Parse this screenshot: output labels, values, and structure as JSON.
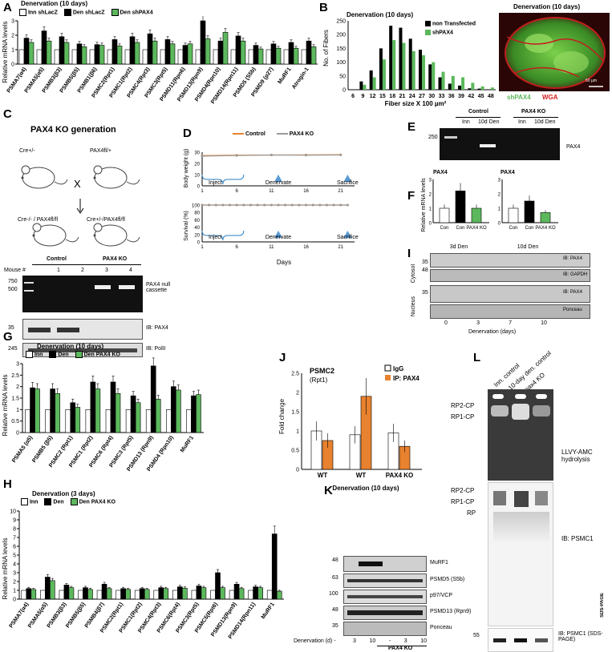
{
  "colors": {
    "inn": "#ffffff",
    "den": "#000000",
    "green": "#5cb85c",
    "orange": "#e8822e",
    "grey": "#9a9a9a",
    "wga": "#d42020"
  },
  "panelA": {
    "letter": "A",
    "header": "Denervation (10 days)",
    "ylabel": "Relative mRNA levels",
    "legend": [
      "Inn shLacZ",
      "Den shLacZ",
      "Den shPAX4"
    ]
  },
  "panelB": {
    "letter": "B",
    "header": "Denervation (10 days)",
    "ylabel": "No. of Fibers",
    "xlabel": "Fiber size X 100 µm²",
    "legend": [
      "non Transfected",
      "shPAX4"
    ],
    "image_title": "Denervation (10 days)",
    "image_label_green": "shPAX4",
    "image_label_red": "WGA",
    "scalebar": "50 µm"
  },
  "panelC": {
    "letter": "C",
    "header": "PAX4 KO generation",
    "left_genotype_top": "Cre+/-",
    "right_genotype_top": "PAX4fl/+",
    "cross": "X",
    "left_offspring": "Cre-/- / PAX4fl/fl",
    "right_offspring": "Cre+/-/PAX4fl/fl",
    "group_control": "Control",
    "group_ko": "PAX4 KO",
    "mouse_label": "Mouse #",
    "lanes": [
      "1",
      "2",
      "3",
      "4"
    ],
    "marker_750": "750",
    "marker_500": "500",
    "marker_35": "35",
    "marker_245": "245",
    "band1": "PAX4 null cassette",
    "band2": "IB: PAX4",
    "band3": "IB: PolII"
  },
  "panelD": {
    "letter": "D",
    "legend": [
      "Control",
      "PAX4 KO"
    ],
    "ylabel_top": "Body weight (g)",
    "ylabel_bottom": "Survival (%)",
    "xlabel": "Days",
    "annot_inject": "Inject",
    "annot_denervate": "Denervate",
    "annot_sacrifice": "Sacrifice",
    "y_ticks_top": [
      "0",
      "10",
      "20",
      "30"
    ],
    "y_ticks_bottom": [
      "0",
      "20",
      "40",
      "60",
      "80",
      "100"
    ],
    "x_ticks": [
      "1",
      "6",
      "11",
      "16",
      "21"
    ]
  },
  "panelE": {
    "letter": "E",
    "group_control": "Control",
    "group_ko": "PAX4 KO",
    "lanes": [
      "Inn",
      "10d Den",
      "Inn",
      "10d Den"
    ],
    "marker": "250",
    "band": "PAX4"
  },
  "panelF": {
    "letter": "F",
    "title1": "PAX4",
    "title2": "PAX4",
    "ylabel": "Relative mRNA levels",
    "xlabels": [
      "Con",
      "Con",
      "PAX4 KO",
      "Con",
      "Con",
      "PAX4 KO"
    ],
    "group1": "3d Den",
    "group2": "10d Den"
  },
  "panelI": {
    "letter": "I",
    "row_cytosol": "Cytosol",
    "row_nucleus": "Nucleus",
    "bands": [
      "IB: PAX4",
      "IB: GAPDH",
      "IB: PAX4",
      "Ponceau"
    ],
    "markers": [
      "35",
      "48",
      "35"
    ],
    "x_ticks": [
      "0",
      "3",
      "7",
      "10"
    ],
    "xlabel": "Denervation (days)"
  },
  "panelG": {
    "letter": "G",
    "header": "Denervation (10 days)",
    "ylabel": "Relative mRNA levels",
    "legend": [
      "Inn",
      "Den",
      "Den PAX4 KO"
    ]
  },
  "panelH": {
    "letter": "H",
    "header": "Denervation (3 days)",
    "ylabel": "Relative mRNA levels",
    "legend": [
      "Inn",
      "Den",
      "Den PAX4 KO"
    ]
  },
  "panelJ": {
    "letter": "J",
    "title": "PSMC2",
    "subtitle": "(Rpt1)",
    "ylabel": "Fold change",
    "legend": [
      "IgG",
      "IP: PAX4"
    ],
    "xticks": [
      "WT",
      "WT",
      "PAX4 KO"
    ],
    "xlabel": "Denervation (10 days)"
  },
  "panelK": {
    "letter": "K",
    "bands": [
      "MuRF1",
      "PSMD5 (S5b)",
      "p97/VCP",
      "PSMD13 (Rpn9)",
      "Ponceau"
    ],
    "markers": [
      "48",
      "63",
      "100",
      "48",
      "35"
    ],
    "xlabel_prefix": "Denervation (d) -",
    "lanes": [
      "-",
      "3",
      "10",
      "-",
      "3",
      "10"
    ],
    "ko_label": "PAX4 KO"
  },
  "panelL": {
    "letter": "L",
    "lanes": [
      "Inn. control",
      "10-day den. control",
      "pax4 KO"
    ],
    "rp2": "RP2-CP",
    "rp1": "RP1-CP",
    "rp": "RP",
    "native_label": "LLVY-AMC hydrolysis",
    "ib_label": "IB: PSMC1",
    "sds_label": "IB: PSMC1 (SDS-PAGE)",
    "ponceau_label": "Ponceau stain (loading control)",
    "marker": "55",
    "side_label": "SDS-PAGE"
  },
  "chart_data": [
    {
      "id": "A",
      "type": "bar",
      "ylim": [
        0,
        3
      ],
      "y_ticks": [
        0,
        1,
        2,
        3
      ],
      "categories": [
        "PSMA7(α4)",
        "PSMA5(α5)",
        "PSMB3(β3)",
        "PSMB5(β5)",
        "PSMB1(β6)",
        "PSMC2(Rpt1)",
        "PSMC1(Rpt2)",
        "PSMC4(Rpt3)",
        "PSMC3(Rpt5)",
        "PSMD11(Rpn6)",
        "PSMD13(Rpn9)",
        "PSMD4(Rpn10)",
        "PSMD14(Rpn11)",
        "PSMD5 (S5b)",
        "PSMD9 (p27)",
        "MuRF1",
        "Atrogin-1"
      ],
      "series": [
        {
          "name": "Inn shLacZ",
          "values": [
            1,
            1,
            1,
            1,
            1,
            1,
            1,
            1,
            1,
            1,
            1,
            1,
            1,
            1,
            1,
            1,
            1
          ]
        },
        {
          "name": "Den shLacZ",
          "values": [
            1.8,
            2.3,
            1.9,
            1.4,
            1.35,
            1.7,
            1.9,
            2.1,
            1.7,
            1.3,
            3.0,
            1.6,
            1.95,
            1.3,
            1.4,
            1.5,
            1.6
          ]
        },
        {
          "name": "Den shPAX4",
          "values": [
            1.5,
            1.6,
            1.5,
            1.2,
            1.3,
            1.25,
            1.5,
            1.6,
            1.4,
            1.4,
            1.75,
            2.2,
            1.6,
            1.05,
            1.1,
            1.1,
            1.2
          ]
        }
      ]
    },
    {
      "id": "B",
      "type": "bar",
      "ylim": [
        0,
        250
      ],
      "y_ticks": [
        0,
        50,
        100,
        150,
        200,
        250
      ],
      "categories": [
        "6",
        "9",
        "12",
        "15",
        "18",
        "21",
        "24",
        "27",
        "30",
        "33",
        "36",
        "39",
        "42",
        "45",
        "48"
      ],
      "series": [
        {
          "name": "non Transfected",
          "values": [
            0,
            30,
            70,
            150,
            232,
            225,
            185,
            145,
            92,
            45,
            22,
            15,
            5,
            4,
            0
          ]
        },
        {
          "name": "shPAX4",
          "values": [
            0,
            18,
            45,
            110,
            180,
            170,
            140,
            125,
            100,
            65,
            50,
            45,
            25,
            12,
            8
          ]
        }
      ]
    },
    {
      "id": "D-top",
      "type": "line",
      "xlim": [
        1,
        23
      ],
      "ylim": [
        0,
        30
      ],
      "series": [
        {
          "name": "Control",
          "x": [
            1,
            6,
            11,
            16,
            21
          ],
          "values": [
            27,
            27.3,
            27.5,
            27.6,
            27.8
          ]
        },
        {
          "name": "PAX4 KO",
          "x": [
            1,
            6,
            11,
            16,
            21
          ],
          "values": [
            26.5,
            27,
            27.5,
            27.3,
            27.5
          ]
        }
      ]
    },
    {
      "id": "D-bottom",
      "type": "line",
      "xlim": [
        1,
        23
      ],
      "ylim": [
        0,
        100
      ],
      "series": [
        {
          "name": "Control",
          "x": [
            1,
            2,
            3,
            4,
            5,
            6,
            7,
            8,
            9,
            10,
            11,
            12,
            13,
            14,
            15,
            16,
            17,
            18,
            19,
            20,
            21,
            22
          ],
          "values": [
            100,
            100,
            100,
            100,
            100,
            100,
            100,
            100,
            100,
            100,
            100,
            100,
            100,
            100,
            100,
            100,
            100,
            100,
            100,
            100,
            100,
            100
          ]
        },
        {
          "name": "PAX4 KO",
          "x": [
            1,
            2,
            3,
            4,
            5,
            6,
            7,
            8,
            9,
            10,
            11,
            12,
            13,
            14,
            15,
            16,
            17,
            18,
            19,
            20,
            21,
            22
          ],
          "values": [
            100,
            100,
            100,
            100,
            100,
            100,
            100,
            100,
            100,
            100,
            100,
            100,
            100,
            100,
            100,
            100,
            100,
            100,
            100,
            100,
            100,
            100
          ]
        }
      ]
    },
    {
      "id": "F1",
      "type": "bar",
      "ylim": [
        0,
        3
      ],
      "categories": [
        "Con",
        "Con",
        "PAX4 KO"
      ],
      "values": [
        1,
        2.2,
        1
      ]
    },
    {
      "id": "F2",
      "type": "bar",
      "ylim": [
        0,
        3
      ],
      "categories": [
        "Con",
        "Con",
        "PAX4 KO"
      ],
      "values": [
        1,
        1.5,
        0.7
      ]
    },
    {
      "id": "G",
      "type": "bar",
      "ylim": [
        0,
        3
      ],
      "y_ticks": [
        0,
        0.5,
        1,
        1.5,
        2,
        2.5,
        3
      ],
      "categories": [
        "PSMA5 (α5)",
        "PSMB5 (β5)",
        "PSMC2 (Rpt1)",
        "PSMC1 (Rpt2)",
        "PSMC6 (Rpt4)",
        "PSMC3 (Rpt5)",
        "PSMD13 (Rpn9)",
        "PSMD4 (Rpn10)",
        "MuRF1"
      ],
      "series": [
        {
          "name": "Inn",
          "values": [
            1,
            1,
            1,
            1,
            1,
            1,
            1,
            1,
            1
          ]
        },
        {
          "name": "Den",
          "values": [
            1.95,
            1.9,
            1.3,
            2.2,
            2.2,
            1.6,
            2.9,
            2.0,
            1.6
          ]
        },
        {
          "name": "Den PAX4 KO",
          "values": [
            1.9,
            1.7,
            1.1,
            1.9,
            1.7,
            1.3,
            1.45,
            1.85,
            1.65
          ]
        }
      ]
    },
    {
      "id": "H",
      "type": "bar",
      "ylim": [
        0,
        10
      ],
      "y_ticks": [
        0,
        1,
        2,
        3,
        4,
        5,
        6,
        7,
        8,
        9,
        10
      ],
      "categories": [
        "PSMA7(α4)",
        "PSMA5(α5)",
        "PSMB3(β3)",
        "PSMB5(β5)",
        "PSMB4(β7)",
        "PSMC2(Rpt1)",
        "PSMC1(Rpt2)",
        "PSMC4(Rpt3)",
        "PSMC6(Rpt4)",
        "PSMC3(Rpt5)",
        "PSMC5(Rpt6)",
        "PSMD13(Rpn9)",
        "PSMD14(Rpn11)",
        "MuRF1"
      ],
      "series": [
        {
          "name": "Inn",
          "values": [
            1,
            1,
            1,
            1,
            1,
            1,
            1,
            1,
            1,
            1,
            1,
            1,
            1,
            1
          ]
        },
        {
          "name": "Den",
          "values": [
            1.2,
            2.5,
            1.6,
            1.3,
            1.7,
            1.2,
            1.2,
            1.3,
            1.4,
            1.5,
            3.0,
            1.7,
            1.4,
            7.4
          ]
        },
        {
          "name": "Den PAX4 KO",
          "values": [
            1.1,
            2.1,
            1.3,
            1.1,
            1.2,
            1.1,
            1.1,
            1.2,
            1.25,
            1.3,
            1.3,
            1.2,
            1.3,
            0.9
          ]
        }
      ]
    },
    {
      "id": "J",
      "type": "bar",
      "ylim": [
        0,
        2.5
      ],
      "y_ticks": [
        0,
        0.5,
        1,
        1.5,
        2,
        2.5
      ],
      "categories": [
        "WT",
        "WT",
        "PAX4 KO"
      ],
      "series": [
        {
          "name": "IgG",
          "values": [
            1.0,
            0.9,
            0.95
          ]
        },
        {
          "name": "IP: PAX4",
          "values": [
            0.75,
            1.9,
            0.6
          ]
        }
      ]
    }
  ]
}
